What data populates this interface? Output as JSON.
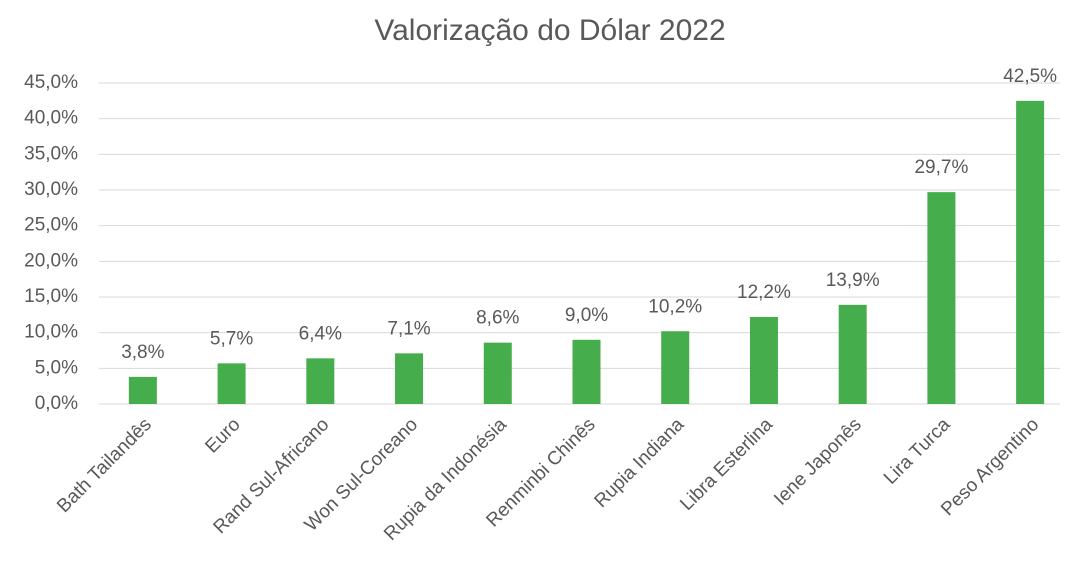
{
  "chart_data": {
    "type": "bar",
    "title": "Valorização do Dólar 2022",
    "categories": [
      "Bath Tailandês",
      "Euro",
      "Rand Sul-Africano",
      "Won Sul-Coreano",
      "Rupia da Indonésia",
      "Renminbi Chinês",
      "Rupia Indiana",
      "Libra Esterlina",
      "Iene Japonês",
      "Lira Turca",
      "Peso Argentino"
    ],
    "values": [
      3.8,
      5.7,
      6.4,
      7.1,
      8.6,
      9.0,
      10.2,
      12.2,
      13.9,
      29.7,
      42.5
    ],
    "value_labels": [
      "3,8%",
      "5,7%",
      "6,4%",
      "7,1%",
      "8,6%",
      "9,0%",
      "10,2%",
      "12,2%",
      "13,9%",
      "29,7%",
      "42,5%"
    ],
    "color": "#45ad4b",
    "ylim": [
      0,
      45
    ],
    "yticks": [
      {
        "value": 0,
        "label": "0,0%"
      },
      {
        "value": 5,
        "label": "5,0%"
      },
      {
        "value": 10,
        "label": "10,0%"
      },
      {
        "value": 15,
        "label": "15,0%"
      },
      {
        "value": 20,
        "label": "20,0%"
      },
      {
        "value": 25,
        "label": "25,0%"
      },
      {
        "value": 30,
        "label": "30,0%"
      },
      {
        "value": 35,
        "label": "35,0%"
      },
      {
        "value": 40,
        "label": "40,0%"
      },
      {
        "value": 45,
        "label": "45,0%"
      }
    ],
    "grid": true
  }
}
